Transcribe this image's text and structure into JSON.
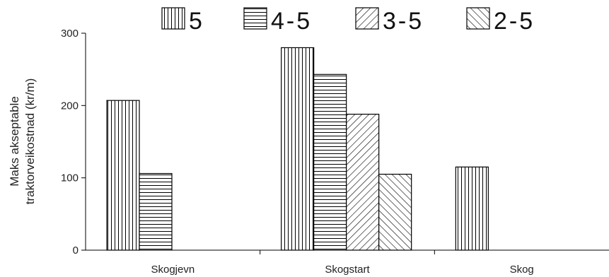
{
  "chart_data": {
    "type": "bar",
    "title": "",
    "xlabel": "",
    "ylabel_lines": [
      "Maks akseptable",
      "traktorveikostnad  (kr/m)"
    ],
    "ylim": [
      0,
      300
    ],
    "yticks": [
      0,
      100,
      200,
      300
    ],
    "grid": false,
    "legend_position": "top",
    "categories": [
      "Skogjevn",
      "Skogstart",
      "Skog"
    ],
    "series": [
      {
        "name": "5",
        "pattern": "vertical",
        "values": [
          207,
          280,
          115
        ]
      },
      {
        "name": "4-5",
        "pattern": "horizontal",
        "values": [
          106,
          243,
          null
        ]
      },
      {
        "name": "3-5",
        "pattern": "diag-down",
        "values": [
          null,
          188,
          null
        ]
      },
      {
        "name": "2-5",
        "pattern": "diag-up",
        "values": [
          null,
          105,
          null
        ]
      }
    ]
  }
}
